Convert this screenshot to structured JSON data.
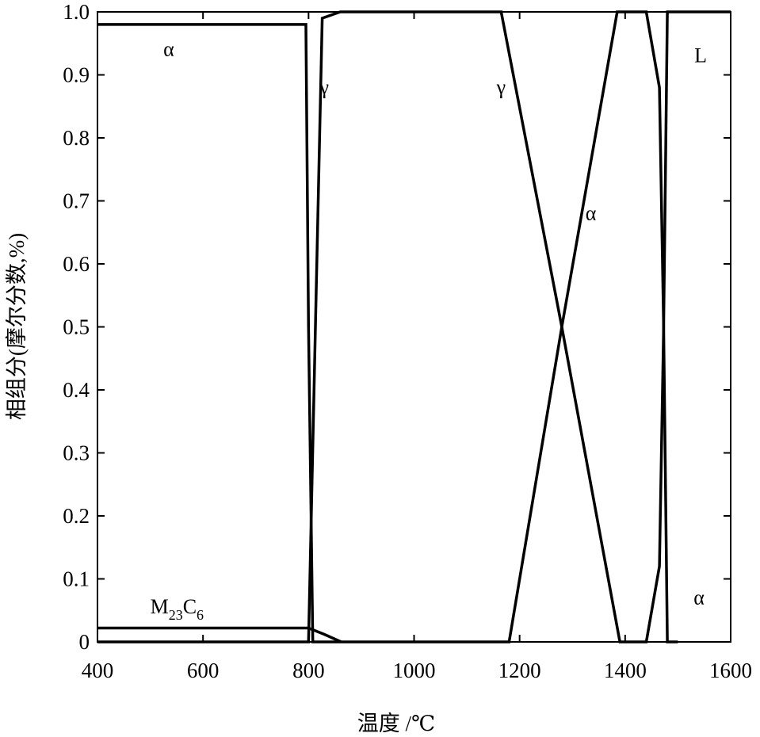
{
  "chart_data": {
    "type": "line",
    "title": "",
    "xlabel": "温度 /℃",
    "ylabel": "相组分(摩尔分数,%)",
    "xlim": [
      400,
      1600
    ],
    "ylim": [
      0,
      1.0
    ],
    "x_ticks": [
      400,
      600,
      800,
      1000,
      1200,
      1400,
      1600
    ],
    "x_tick_labels": [
      "400",
      "600",
      "800",
      "1000",
      "1200",
      "1400",
      "1600"
    ],
    "y_ticks": [
      0,
      0.1,
      0.2,
      0.3,
      0.4,
      0.5,
      0.6,
      0.7,
      0.8,
      0.9,
      1.0
    ],
    "y_tick_labels": [
      "0",
      "0.1",
      "0.2",
      "0.3",
      "0.4",
      "0.5",
      "0.6",
      "0.7",
      "0.8",
      "0.9",
      "1.0"
    ],
    "grid": false,
    "series": [
      {
        "label": "α",
        "points": [
          [
            400,
            0.98
          ],
          [
            795,
            0.98
          ],
          [
            800,
            0.5
          ],
          [
            808,
            0
          ],
          [
            1180,
            0
          ],
          [
            1280,
            0.5
          ],
          [
            1385,
            1.0
          ],
          [
            1440,
            1.0
          ],
          [
            1465,
            0.88
          ],
          [
            1473,
            0.5
          ],
          [
            1480,
            0
          ],
          [
            1500,
            0
          ]
        ]
      },
      {
        "label": "γ",
        "points": [
          [
            400,
            0
          ],
          [
            800,
            0
          ],
          [
            813,
            0.5
          ],
          [
            826,
            0.99
          ],
          [
            860,
            1.0
          ],
          [
            1165,
            1.0
          ],
          [
            1280,
            0.5
          ],
          [
            1390,
            0
          ],
          [
            1440,
            0
          ],
          [
            1465,
            0.12
          ],
          [
            1473,
            0.5
          ],
          [
            1480,
            1.0
          ],
          [
            1600,
            1.0
          ]
        ]
      },
      {
        "label": "M23C6",
        "points": [
          [
            400,
            0.022
          ],
          [
            800,
            0.022
          ],
          [
            830,
            0.012
          ],
          [
            862,
            0
          ]
        ]
      }
    ],
    "series_labels": [
      {
        "text": "α",
        "x": 535,
        "y": 0.93
      },
      {
        "text": "γ",
        "x": 830,
        "y": 0.87
      },
      {
        "text": "γ",
        "x": 1165,
        "y": 0.87
      },
      {
        "text": "α",
        "x": 1335,
        "y": 0.67
      },
      {
        "text": "L",
        "x": 1543,
        "y": 0.92
      },
      {
        "text": "α",
        "x": 1540,
        "y": 0.06
      }
    ],
    "annotation_m23c6": {
      "main": "M",
      "sub1": "23",
      "main2": "C",
      "sub2": "6",
      "x": 500,
      "y": 0.045
    }
  }
}
